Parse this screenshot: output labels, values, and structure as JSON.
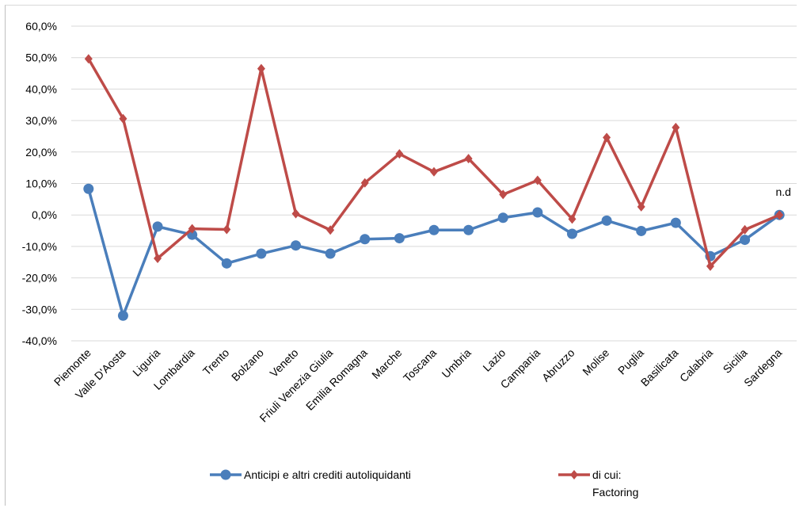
{
  "chart_data": {
    "type": "line",
    "categories": [
      "Piemonte",
      "Valle D'Aosta",
      "Liguria",
      "Lombardia",
      "Trento",
      "Bolzano",
      "Veneto",
      "Friuli Venezia Giulia",
      "Emilia Romagna",
      "Marche",
      "Toscana",
      "Umbria",
      "Lazio",
      "Campania",
      "Abruzzo",
      "Molise",
      "Puglia",
      "Basilicata",
      "Calabria",
      "Sicilia",
      "Sardegna"
    ],
    "series": [
      {
        "name": "Anticipi e altri crediti autoliquidanti",
        "color": "#4a7ebb",
        "marker": "circle",
        "values": [
          8.3,
          -32.0,
          -3.7,
          -6.3,
          -15.4,
          -12.3,
          -9.7,
          -12.3,
          -7.7,
          -7.4,
          -4.8,
          -4.8,
          -0.9,
          0.8,
          -6.0,
          -1.8,
          -5.1,
          -2.5,
          -13.1,
          -7.9,
          0.0
        ]
      },
      {
        "name": "di cui:\nFactoring",
        "color": "#be4b48",
        "marker": "diamond",
        "values": [
          49.6,
          30.6,
          -13.8,
          -4.4,
          -4.6,
          46.5,
          0.4,
          -4.8,
          10.2,
          19.4,
          13.7,
          17.9,
          6.5,
          11.0,
          -1.3,
          24.6,
          2.6,
          27.8,
          -16.3,
          -4.7,
          0.0
        ]
      }
    ],
    "annotation": "n.d",
    "ylim": [
      -40,
      60
    ],
    "yticks": [
      "-40,0%",
      "-30,0%",
      "-20,0%",
      "-10,0%",
      "0,0%",
      "10,0%",
      "20,0%",
      "30,0%",
      "40,0%",
      "50,0%",
      "60,0%"
    ],
    "grid": true,
    "legend_position": "bottom"
  }
}
